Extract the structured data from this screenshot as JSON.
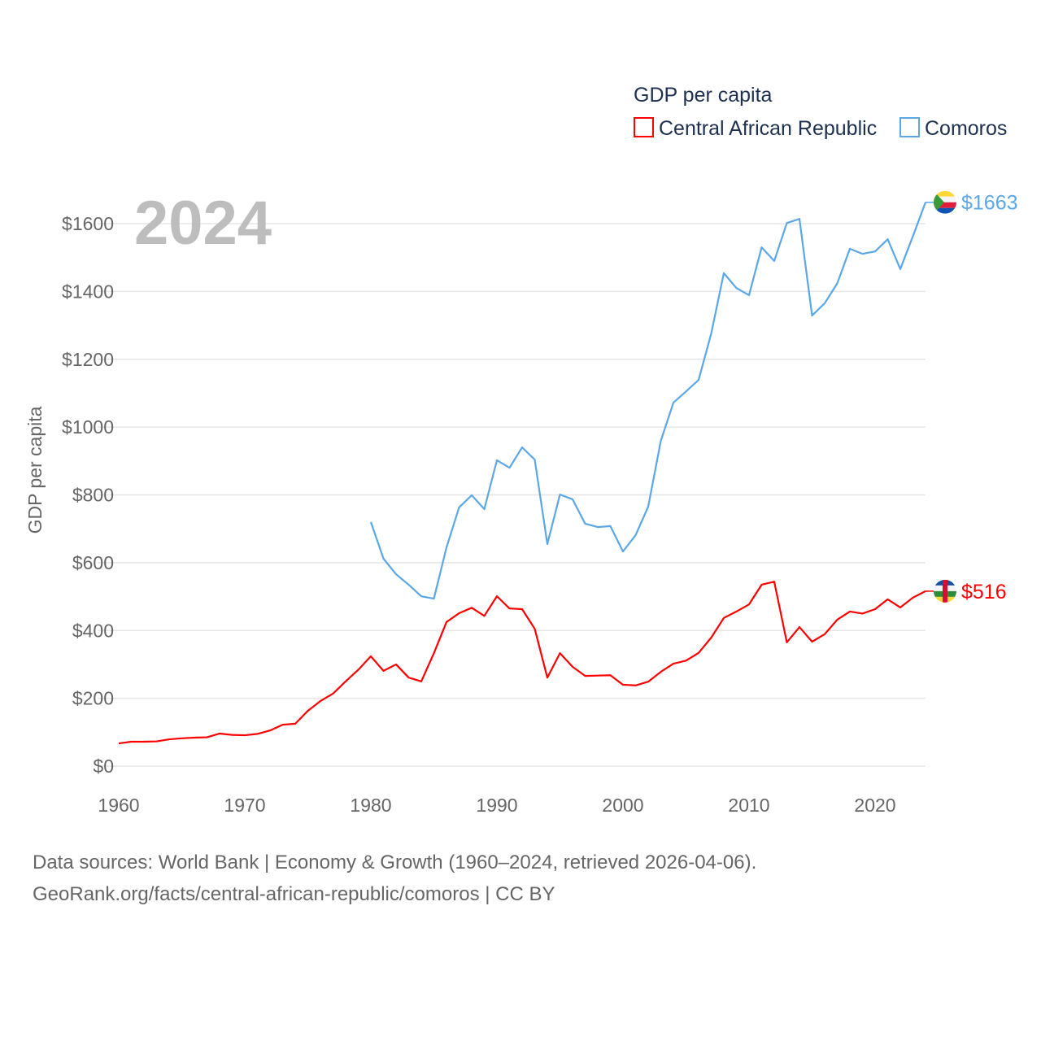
{
  "chart_data": {
    "type": "line",
    "title": "GDP per capita",
    "year_label": "2024",
    "ylabel": "GDP per capita",
    "xlabel": "",
    "xlim": [
      1960,
      2024
    ],
    "ylim": [
      0,
      1600
    ],
    "x_ticks": [
      1960,
      1970,
      1980,
      1990,
      2000,
      2010,
      2020
    ],
    "y_ticks": [
      0,
      200,
      400,
      600,
      800,
      1000,
      1200,
      1400,
      1600
    ],
    "y_tick_labels": [
      "$0",
      "$200",
      "$400",
      "$600",
      "$800",
      "$1000",
      "$1200",
      "$1400",
      "$1600"
    ],
    "grid": true,
    "legend_position": "top-right",
    "series": [
      {
        "name": "Central African Republic",
        "color": "#ff0000",
        "end_label": "$516",
        "flag": "central-african-republic-flag",
        "start_year": 1960,
        "values": [
          67,
          72,
          72,
          73,
          79,
          82,
          84,
          85,
          96,
          92,
          91,
          95,
          105,
          122,
          125,
          163,
          192,
          214,
          250,
          284,
          324,
          281,
          300,
          261,
          250,
          333,
          425,
          451,
          467,
          443,
          501,
          465,
          463,
          405,
          261,
          333,
          293,
          266,
          267,
          268,
          240,
          238,
          249,
          278,
          302,
          311,
          334,
          379,
          437,
          456,
          477,
          535,
          544,
          365,
          410,
          367,
          389,
          432,
          456,
          450,
          463,
          492,
          468,
          497,
          516
        ]
      },
      {
        "name": "Comoros",
        "color": "#5ba7e8",
        "end_label": "$1663",
        "flag": "comoros-flag",
        "start_year": 1980,
        "values": [
          720,
          612,
          566,
          535,
          501,
          494,
          645,
          763,
          799,
          758,
          902,
          880,
          940,
          904,
          655,
          801,
          787,
          715,
          705,
          708,
          633,
          681,
          765,
          959,
          1072,
          1105,
          1139,
          1276,
          1454,
          1410,
          1389,
          1530,
          1490,
          1602,
          1614,
          1329,
          1365,
          1424,
          1526,
          1511,
          1518,
          1554,
          1466,
          1563,
          1663
        ]
      }
    ]
  },
  "footer": {
    "line1": "Data sources: World Bank | Economy & Growth (1960–2024, retrieved 2026-04-06).",
    "line2": "GeoRank.org/facts/central-african-republic/comoros | CC BY"
  }
}
